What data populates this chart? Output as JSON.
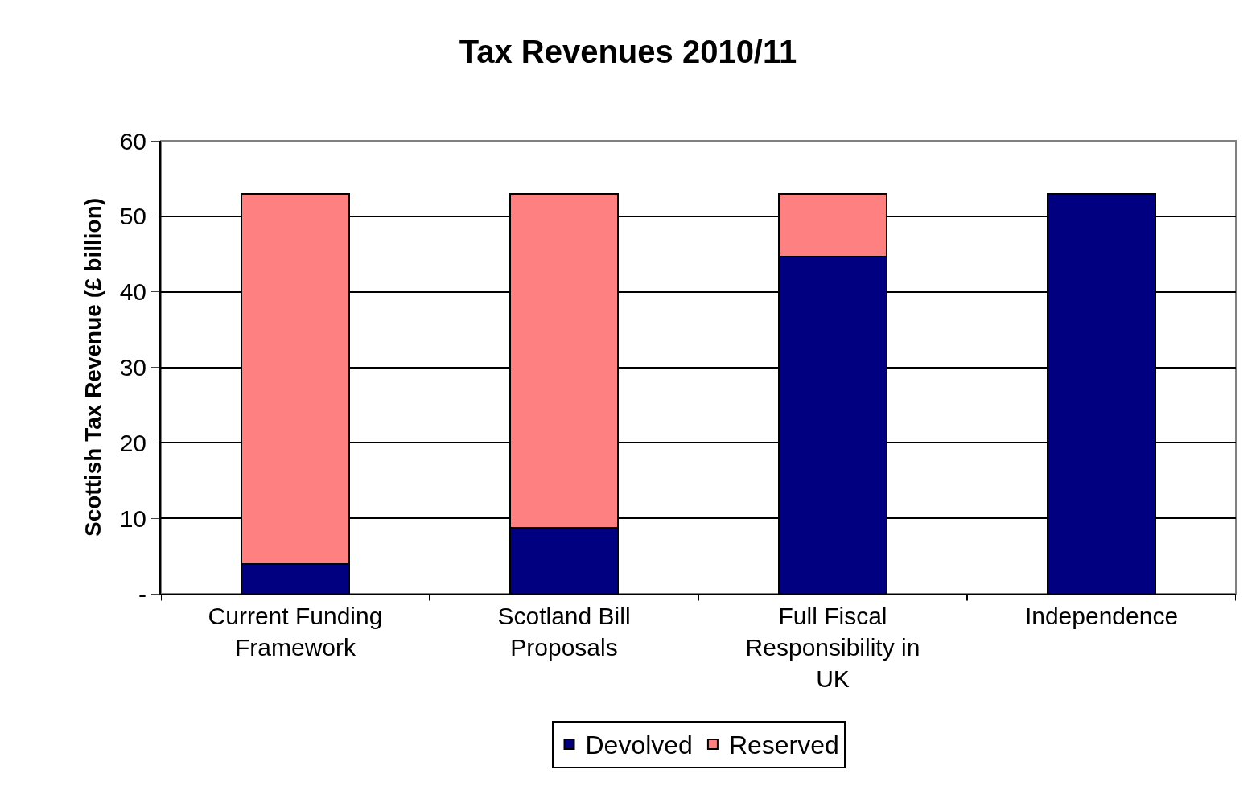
{
  "chart_data": {
    "type": "bar",
    "title": "Tax Revenues 2010/11",
    "ylabel": "Scottish Tax Revenue (£ billion)",
    "categories": [
      "Current Funding Framework",
      "Scotland Bill Proposals",
      "Full Fiscal Responsibility in UK",
      "Independence"
    ],
    "series": [
      {
        "name": "Devolved",
        "color": "#000080",
        "values": [
          3.9,
          8.7,
          44.7,
          53.0
        ]
      },
      {
        "name": "Reserved",
        "color": "#ff8080",
        "values": [
          49.1,
          44.3,
          8.3,
          null
        ]
      }
    ],
    "stacked": true,
    "ylim": [
      0,
      60
    ],
    "yticks": [
      {
        "value": 0,
        "label": "-"
      },
      10,
      20,
      30,
      40,
      50,
      60
    ],
    "grid": "y",
    "legend": "bottom"
  }
}
